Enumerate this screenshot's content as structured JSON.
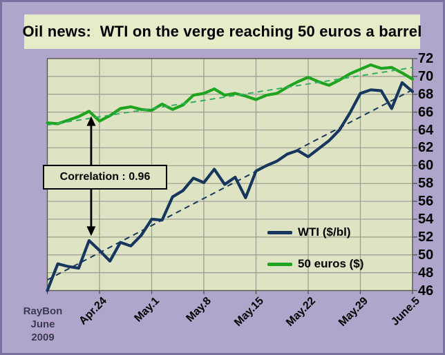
{
  "title": "Oil news:  WTI on the verge reaching 50 euros a barrel",
  "annotation": {
    "correlation_label": "Correlation : 0.96"
  },
  "legend": {
    "wti": "WTI ($/bl)",
    "euro": "50 euros ($)"
  },
  "watermark": {
    "line1": "RayBon",
    "line2": "June",
    "line3": "2009"
  },
  "colors": {
    "background": "#b2a5cc",
    "frame_border": "#7b709f",
    "panel_bg": "#e6ebc8",
    "plot_bg": "#dde3c3",
    "gridline": "#9a9c8e",
    "plot_border": "#55584c",
    "wti_color": "#17365d",
    "euro_color": "#1ea41e",
    "euro_trend_color": "#35b062",
    "arrow_color": "#000000",
    "watermark_color": "#3a3a52"
  },
  "chart_data": {
    "type": "line",
    "title": "Oil news:  WTI on the verge reaching 50 euros a barrel",
    "xlabel": "",
    "ylabel": "",
    "ylim": [
      46,
      72
    ],
    "ytick_step": 2,
    "grid": true,
    "legend_position": "inside lower right",
    "x_tick_labels": [
      "Apr.24",
      "May.1",
      "May.8",
      "May.15",
      "May.22",
      "May.29",
      "June.5"
    ],
    "x_tick_indices": [
      5,
      10,
      15,
      20,
      25,
      30,
      35
    ],
    "series": [
      {
        "name": "WTI ($/bl)",
        "color": "#17365d",
        "values": [
          46.0,
          49.0,
          48.7,
          48.5,
          51.6,
          50.5,
          49.3,
          51.4,
          51.0,
          52.2,
          54.0,
          53.9,
          56.5,
          57.2,
          58.6,
          58.1,
          59.6,
          57.9,
          58.7,
          56.4,
          59.4,
          60.0,
          60.5,
          61.3,
          61.7,
          61.0,
          61.9,
          62.8,
          64.0,
          65.9,
          68.1,
          68.5,
          68.4,
          66.4,
          69.3,
          68.3
        ],
        "trendline": {
          "style": "dashed",
          "start": 47.2,
          "end": 68.5,
          "color": "#17365d"
        }
      },
      {
        "name": "50 euros ($)",
        "color": "#1ea41e",
        "values": [
          64.8,
          64.7,
          65.1,
          65.5,
          66.1,
          65.0,
          65.6,
          66.4,
          66.6,
          66.3,
          66.2,
          66.9,
          66.3,
          66.8,
          67.9,
          68.1,
          68.6,
          67.9,
          68.1,
          67.8,
          67.4,
          67.9,
          68.1,
          68.8,
          69.4,
          69.9,
          69.4,
          69.0,
          69.6,
          70.3,
          70.8,
          71.3,
          70.9,
          71.0,
          70.4,
          69.7
        ],
        "trendline": {
          "style": "dashed",
          "start": 64.55,
          "end": 71.0,
          "color": "#35b062"
        }
      }
    ],
    "annotation": {
      "text": "Correlation : 0.96",
      "arrow_day_index": 4.2,
      "arrow_top_value": 66.0,
      "arrow_bottom_value": 51.8
    }
  }
}
